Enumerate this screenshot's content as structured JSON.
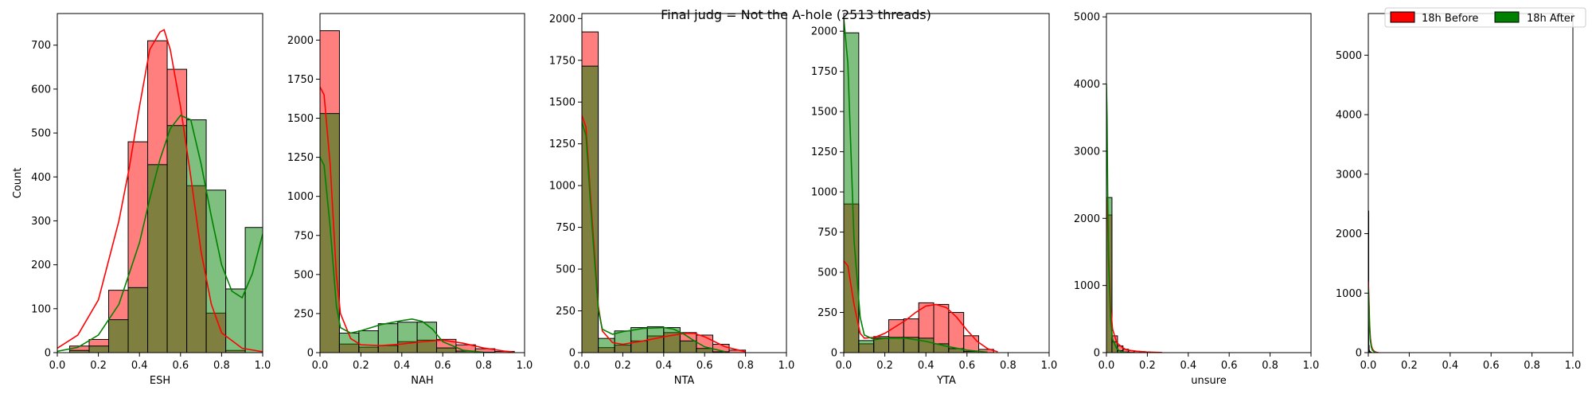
{
  "figure": {
    "suptitle": "Final judg = Not the A-hole (2513 threads)",
    "legend": {
      "placement": "top-right",
      "entries": [
        {
          "label": "18h Before",
          "color": "#ff0000"
        },
        {
          "label": "18h After",
          "color": "#008000"
        }
      ]
    },
    "colors": {
      "before_fill": "rgba(255,0,0,0.5)",
      "after_fill": "rgba(0,128,0,0.5)",
      "before_line": "#ff0000",
      "after_line": "#008000",
      "bar_edge": "#000000"
    }
  },
  "chart_data": [
    {
      "type": "bar",
      "xlabel": "ESH",
      "ylabel": "Count",
      "xlim": [
        0,
        1.0
      ],
      "ylim": [
        0,
        772
      ],
      "xticks": [
        "0.0",
        "0.2",
        "0.4",
        "0.6",
        "0.8",
        "1.0"
      ],
      "xtick_values": [
        0,
        0.2,
        0.4,
        0.6,
        0.8,
        1.0
      ],
      "yticks": [
        "0",
        "100",
        "200",
        "300",
        "400",
        "500",
        "600",
        "700"
      ],
      "ytick_values": [
        0,
        100,
        200,
        300,
        400,
        500,
        600,
        700
      ],
      "bin_edges": [
        0.06,
        0.155,
        0.25,
        0.345,
        0.44,
        0.535,
        0.63,
        0.725,
        0.82,
        0.915,
        1.0
      ],
      "series": [
        {
          "name": "18h Before",
          "values": [
            15,
            30,
            142,
            480,
            710,
            645,
            380,
            90,
            5,
            0
          ],
          "kde_x": [
            0.0,
            0.1,
            0.2,
            0.3,
            0.35,
            0.4,
            0.45,
            0.5,
            0.52,
            0.55,
            0.6,
            0.65,
            0.7,
            0.75,
            0.8,
            0.9,
            1.0
          ],
          "kde_y": [
            10,
            40,
            120,
            300,
            420,
            560,
            690,
            730,
            735,
            690,
            560,
            400,
            230,
            110,
            45,
            10,
            2
          ]
        },
        {
          "name": "18h After",
          "values": [
            5,
            15,
            75,
            148,
            428,
            517,
            530,
            370,
            145,
            285
          ],
          "kde_x": [
            0.0,
            0.1,
            0.2,
            0.3,
            0.4,
            0.45,
            0.5,
            0.55,
            0.6,
            0.65,
            0.7,
            0.75,
            0.8,
            0.85,
            0.9,
            0.95,
            1.0
          ],
          "kde_y": [
            3,
            12,
            40,
            110,
            250,
            350,
            440,
            510,
            540,
            530,
            430,
            310,
            200,
            140,
            125,
            180,
            270
          ]
        }
      ]
    },
    {
      "type": "bar",
      "xlabel": "NAH",
      "ylabel": "",
      "xlim": [
        0,
        1.0
      ],
      "ylim": [
        0,
        2170
      ],
      "xticks": [
        "0.0",
        "0.2",
        "0.4",
        "0.6",
        "0.8",
        "1.0"
      ],
      "xtick_values": [
        0,
        0.2,
        0.4,
        0.6,
        0.8,
        1.0
      ],
      "yticks": [
        "0",
        "250",
        "500",
        "750",
        "1000",
        "1250",
        "1500",
        "1750",
        "2000"
      ],
      "ytick_values": [
        0,
        250,
        500,
        750,
        1000,
        1250,
        1500,
        1750,
        2000
      ],
      "bin_edges": [
        0.0,
        0.095,
        0.19,
        0.285,
        0.38,
        0.475,
        0.57,
        0.665,
        0.76,
        0.855,
        0.95
      ],
      "series": [
        {
          "name": "18h Before",
          "values": [
            2060,
            55,
            35,
            45,
            70,
            80,
            85,
            50,
            25,
            8
          ],
          "kde_x": [
            0.0,
            0.02,
            0.05,
            0.08,
            0.1,
            0.15,
            0.2,
            0.3,
            0.4,
            0.5,
            0.6,
            0.7,
            0.8,
            0.9,
            0.95
          ],
          "kde_y": [
            1700,
            1650,
            1200,
            500,
            250,
            90,
            50,
            45,
            55,
            70,
            80,
            60,
            30,
            10,
            3
          ]
        },
        {
          "name": "18h After",
          "values": [
            1530,
            125,
            140,
            185,
            195,
            195,
            30,
            10,
            3,
            0
          ],
          "kde_x": [
            0.0,
            0.02,
            0.05,
            0.08,
            0.1,
            0.15,
            0.2,
            0.3,
            0.4,
            0.45,
            0.5,
            0.55,
            0.6,
            0.7,
            0.8
          ],
          "kde_y": [
            1250,
            1200,
            800,
            300,
            160,
            125,
            140,
            180,
            205,
            215,
            200,
            150,
            70,
            15,
            2
          ]
        }
      ]
    },
    {
      "type": "bar",
      "xlabel": "NTA",
      "ylabel": "",
      "xlim": [
        0,
        1.0
      ],
      "ylim": [
        0,
        2030
      ],
      "xticks": [
        "0.0",
        "0.2",
        "0.4",
        "0.6",
        "0.8",
        "1.0"
      ],
      "xtick_values": [
        0,
        0.2,
        0.4,
        0.6,
        0.8,
        1.0
      ],
      "yticks": [
        "0",
        "250",
        "500",
        "750",
        "1000",
        "1250",
        "1500",
        "1750",
        "2000"
      ],
      "ytick_values": [
        0,
        250,
        500,
        750,
        1000,
        1250,
        1500,
        1750,
        2000
      ],
      "bin_edges": [
        0.0,
        0.08,
        0.16,
        0.24,
        0.32,
        0.4,
        0.48,
        0.56,
        0.64,
        0.72,
        0.8
      ],
      "series": [
        {
          "name": "18h Before",
          "values": [
            1920,
            30,
            45,
            70,
            100,
            120,
            120,
            105,
            50,
            15
          ],
          "kde_x": [
            0.0,
            0.02,
            0.05,
            0.08,
            0.1,
            0.15,
            0.2,
            0.3,
            0.4,
            0.5,
            0.55,
            0.6,
            0.65,
            0.7,
            0.8
          ],
          "kde_y": [
            1420,
            1350,
            800,
            280,
            130,
            60,
            50,
            70,
            95,
            115,
            115,
            95,
            65,
            35,
            5
          ]
        },
        {
          "name": "18h After",
          "values": [
            1715,
            85,
            130,
            150,
            155,
            150,
            70,
            25,
            5,
            0
          ],
          "kde_x": [
            0.0,
            0.02,
            0.05,
            0.08,
            0.1,
            0.15,
            0.2,
            0.3,
            0.4,
            0.45,
            0.5,
            0.55,
            0.6,
            0.7
          ],
          "kde_y": [
            1380,
            1300,
            750,
            260,
            140,
            110,
            125,
            145,
            150,
            140,
            110,
            70,
            35,
            5
          ]
        }
      ]
    },
    {
      "type": "bar",
      "xlabel": "YTA",
      "ylabel": "",
      "xlim": [
        0,
        1.0
      ],
      "ylim": [
        0,
        2110
      ],
      "xticks": [
        "0.0",
        "0.2",
        "0.4",
        "0.6",
        "0.8",
        "1.0"
      ],
      "xtick_values": [
        0,
        0.2,
        0.4,
        0.6,
        0.8,
        1.0
      ],
      "yticks": [
        "0",
        "250",
        "500",
        "750",
        "1000",
        "1250",
        "1500",
        "1750",
        "2000"
      ],
      "ytick_values": [
        0,
        250,
        500,
        750,
        1000,
        1250,
        1500,
        1750,
        2000
      ],
      "bin_edges": [
        0.0,
        0.073,
        0.146,
        0.219,
        0.292,
        0.365,
        0.438,
        0.511,
        0.584,
        0.657,
        0.73
      ],
      "series": [
        {
          "name": "18h Before",
          "values": [
            925,
            55,
            100,
            205,
            210,
            310,
            300,
            250,
            105,
            20
          ],
          "kde_x": [
            0.0,
            0.02,
            0.05,
            0.08,
            0.1,
            0.15,
            0.2,
            0.3,
            0.35,
            0.4,
            0.45,
            0.5,
            0.55,
            0.6,
            0.65,
            0.7,
            0.75
          ],
          "kde_y": [
            570,
            540,
            300,
            120,
            90,
            95,
            120,
            200,
            250,
            290,
            300,
            280,
            220,
            140,
            70,
            25,
            5
          ]
        },
        {
          "name": "18h After",
          "values": [
            1990,
            75,
            90,
            95,
            95,
            90,
            55,
            25,
            8,
            0
          ],
          "kde_x": [
            0.0,
            0.02,
            0.05,
            0.08,
            0.1,
            0.15,
            0.2,
            0.3,
            0.4,
            0.5,
            0.6,
            0.7
          ],
          "kde_y": [
            2080,
            1800,
            700,
            220,
            110,
            80,
            90,
            90,
            70,
            40,
            15,
            3
          ]
        }
      ]
    },
    {
      "type": "bar",
      "xlabel": "unsure",
      "ylabel": "",
      "xlim": [
        0,
        1.0
      ],
      "ylim": [
        0,
        5050
      ],
      "xticks": [
        "0.0",
        "0.2",
        "0.4",
        "0.6",
        "0.8",
        "1.0"
      ],
      "xtick_values": [
        0,
        0.2,
        0.4,
        0.6,
        0.8,
        1.0
      ],
      "yticks": [
        "0",
        "1000",
        "2000",
        "3000",
        "4000",
        "5000"
      ],
      "ytick_values": [
        0,
        1000,
        2000,
        3000,
        4000,
        5000
      ],
      "bin_edges": [
        0.0,
        0.027,
        0.054,
        0.081,
        0.108,
        0.135,
        0.162,
        0.189,
        0.216,
        0.243,
        0.27
      ],
      "series": [
        {
          "name": "18h Before",
          "values": [
            2050,
            250,
            100,
            50,
            30,
            20,
            15,
            10,
            5,
            3
          ],
          "kde_x": [
            0.0,
            0.005,
            0.01,
            0.02,
            0.03,
            0.05,
            0.08,
            0.1,
            0.15,
            0.2,
            0.27
          ],
          "kde_y": [
            2300,
            2100,
            1500,
            700,
            350,
            150,
            70,
            40,
            20,
            8,
            2
          ]
        },
        {
          "name": "18h After",
          "values": [
            2310,
            160,
            30,
            10,
            3,
            0,
            0,
            0,
            0,
            0
          ],
          "kde_x": [
            0.0,
            0.003,
            0.006,
            0.01,
            0.02,
            0.03,
            0.05,
            0.07,
            0.1
          ],
          "kde_y": [
            4000,
            3500,
            2400,
            1400,
            500,
            200,
            60,
            15,
            3
          ]
        }
      ]
    },
    {
      "type": "bar",
      "xlabel": "",
      "ylabel": "",
      "xlim": [
        0,
        1.0
      ],
      "ylim": [
        0,
        5700
      ],
      "xticks": [
        "0.0",
        "0.2",
        "0.4",
        "0.6",
        "0.8",
        "1.0"
      ],
      "xtick_values": [
        0,
        0.2,
        0.4,
        0.6,
        0.8,
        1.0
      ],
      "yticks": [
        "0",
        "1000",
        "2000",
        "3000",
        "4000",
        "5000"
      ],
      "ytick_values": [
        0,
        1000,
        2000,
        3000,
        4000,
        5000
      ],
      "bin_edges": [
        0.0,
        0.002,
        0.004,
        0.006,
        0.008,
        0.01,
        0.012,
        0.014,
        0.016,
        0.018,
        0.02
      ],
      "series": [
        {
          "name": "18h Before",
          "values": [
            2300,
            120,
            40,
            20,
            15,
            10,
            5,
            3,
            0,
            0
          ],
          "kde_x": [
            0.0,
            0.003,
            0.006,
            0.01,
            0.015,
            0.02,
            0.03,
            0.04,
            0.05
          ],
          "kde_y": [
            1200,
            900,
            500,
            250,
            120,
            60,
            20,
            5,
            1
          ]
        },
        {
          "name": "18h After",
          "values": [
            2380,
            80,
            30,
            15,
            5,
            3,
            0,
            0,
            0,
            0
          ],
          "kde_x": [
            0.0,
            0.003,
            0.006,
            0.01,
            0.015,
            0.02,
            0.03,
            0.04
          ],
          "kde_y": [
            1100,
            800,
            420,
            200,
            90,
            40,
            10,
            2
          ]
        }
      ]
    }
  ]
}
